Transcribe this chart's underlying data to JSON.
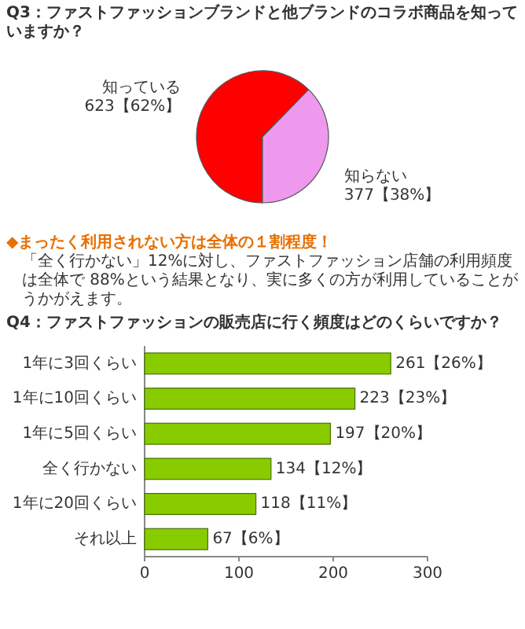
{
  "chart_data": [
    {
      "type": "pie",
      "title": "Q3：ファストファッションブランドと他ブランドのコラボ商品を知っていますか？",
      "categories": [
        "知っている",
        "知らない"
      ],
      "values": [
        623,
        377
      ],
      "value_labels": [
        "623【62%】",
        "377【38%】"
      ],
      "colors": [
        "#ff0000",
        "#ee99ee"
      ],
      "annotations": [
        "◆まったく利用されない方は全体の１割程度！",
        "「全く行かない」12%に対し、ファストファッション店舗の利用頻度は全体で 88%という結果となり、実に多くの方が利用していることがうかがえます。"
      ]
    },
    {
      "type": "bar",
      "orientation": "horizontal",
      "title": "Q4：ファストファッションの販売店に行く頻度はどのくらいですか？",
      "categories": [
        "1年に3回くらい",
        "1年に10回くらい",
        "1年に5回くらい",
        "全く行かない",
        "1年に20回くらい",
        "それ以上"
      ],
      "values": [
        261,
        223,
        197,
        134,
        118,
        67
      ],
      "value_labels": [
        "261【26%】",
        "223【23%】",
        "197【20%】",
        "134【12%】",
        "118【11%】",
        "67【6%】"
      ],
      "color": "#88cc00",
      "xlim": [
        0,
        300
      ],
      "xticks": [
        0,
        100,
        200,
        300
      ]
    }
  ]
}
